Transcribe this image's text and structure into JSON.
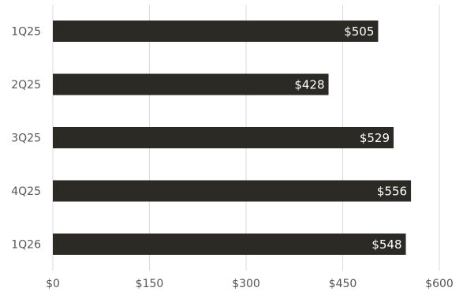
{
  "chart_data": {
    "type": "bar",
    "orientation": "horizontal",
    "categories": [
      "1Q25",
      "2Q25",
      "3Q25",
      "4Q25",
      "1Q26"
    ],
    "values": [
      505,
      428,
      529,
      556,
      548
    ],
    "data_labels": [
      "$505",
      "$428",
      "$529",
      "$556",
      "$548"
    ],
    "x_ticks": [
      0,
      150,
      300,
      450,
      600
    ],
    "x_tick_labels": [
      "$0",
      "$150",
      "$300",
      "$450",
      "$600"
    ],
    "xlim": [
      0,
      600
    ],
    "grid": "vertical",
    "legend": "none",
    "title": "",
    "xlabel": "",
    "ylabel": ""
  },
  "colors": {
    "bar": "#2b2a24",
    "grid": "#d9d9d9",
    "axis_text": "#555555",
    "label_text": "#ffffff",
    "background": "#ffffff"
  }
}
